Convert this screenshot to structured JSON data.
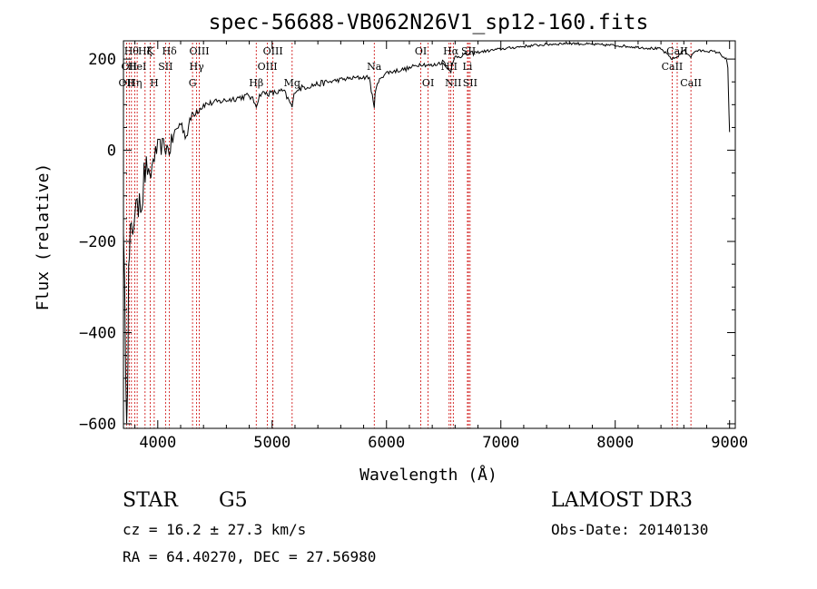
{
  "chart_data": {
    "type": "line",
    "title": "spec-56688-VB062N26V1_sp12-160.fits",
    "xlabel": "Wavelength (Å)",
    "ylabel": "Flux (relative)",
    "xlim": [
      3700,
      9050
    ],
    "ylim": [
      -610,
      240
    ],
    "xticks": [
      4000,
      5000,
      6000,
      7000,
      8000,
      9000
    ],
    "yticks": [
      -600,
      -400,
      -200,
      0,
      200
    ],
    "series": [
      {
        "name": "flux",
        "x": [
          3700,
          3720,
          3735,
          3745,
          3760,
          3780,
          3800,
          3820,
          3840,
          3860,
          3880,
          3900,
          3930,
          3960,
          4000,
          4050,
          4100,
          4150,
          4200,
          4250,
          4300,
          4350,
          4400,
          4500,
          4600,
          4700,
          4800,
          4861,
          4900,
          5000,
          5100,
          5175,
          5200,
          5300,
          5400,
          5500,
          5600,
          5700,
          5800,
          5850,
          5893,
          5900,
          5950,
          6000,
          6100,
          6200,
          6300,
          6400,
          6500,
          6563,
          6600,
          6700,
          6800,
          7000,
          7200,
          7400,
          7600,
          7800,
          8000,
          8200,
          8400,
          8498,
          8542,
          8600,
          8662,
          8700,
          8800,
          8900,
          8970,
          8985,
          8995,
          9000
        ],
        "y": [
          -110,
          -580,
          -450,
          -300,
          -200,
          -170,
          -120,
          -150,
          -80,
          -110,
          -60,
          -30,
          -70,
          -20,
          5,
          10,
          0,
          40,
          60,
          30,
          80,
          90,
          100,
          105,
          110,
          115,
          120,
          100,
          125,
          125,
          130,
          95,
          132,
          140,
          145,
          150,
          155,
          158,
          160,
          160,
          90,
          130,
          160,
          170,
          175,
          180,
          190,
          185,
          195,
          175,
          205,
          210,
          215,
          222,
          228,
          232,
          235,
          232,
          230,
          226,
          222,
          200,
          205,
          220,
          205,
          218,
          218,
          215,
          200,
          180,
          80,
          40
        ]
      }
    ],
    "lines": [
      {
        "wave": 3727,
        "label": "OII",
        "row": 2
      },
      {
        "wave": 3750,
        "label": "OII",
        "row": 1
      },
      {
        "wave": 3770,
        "label": "Hθ",
        "row": 0
      },
      {
        "wave": 3798,
        "label": "Hη",
        "row": 2
      },
      {
        "wave": 3820,
        "label": "HeI",
        "row": 1
      },
      {
        "wave": 3889,
        "label": "Hζ",
        "row": 0
      },
      {
        "wave": 3934,
        "label": "K",
        "row": 0
      },
      {
        "wave": 3969,
        "label": "H",
        "row": 2
      },
      {
        "wave": 4068,
        "label": "SII",
        "row": 1
      },
      {
        "wave": 4102,
        "label": "Hδ",
        "row": 0
      },
      {
        "wave": 4304,
        "label": "G",
        "row": 2
      },
      {
        "wave": 4340,
        "label": "Hγ",
        "row": 1
      },
      {
        "wave": 4363,
        "label": "OIII",
        "row": 0
      },
      {
        "wave": 4861,
        "label": "Hβ",
        "row": 2
      },
      {
        "wave": 4959,
        "label": "OIII",
        "row": 1
      },
      {
        "wave": 5007,
        "label": "OIII",
        "row": 0
      },
      {
        "wave": 5175,
        "label": "Mg",
        "row": 2
      },
      {
        "wave": 5893,
        "label": "Na",
        "row": 1
      },
      {
        "wave": 6300,
        "label": "OI",
        "row": 0
      },
      {
        "wave": 6364,
        "label": "OI",
        "row": 2
      },
      {
        "wave": 6548,
        "label": "NII",
        "row": 1
      },
      {
        "wave": 6563,
        "label": "Hα",
        "row": 0
      },
      {
        "wave": 6584,
        "label": "NII",
        "row": 2
      },
      {
        "wave": 6708,
        "label": "Li",
        "row": 1
      },
      {
        "wave": 6717,
        "label": "SII",
        "row": 0
      },
      {
        "wave": 6731,
        "label": "SII",
        "row": 2
      },
      {
        "wave": 8498,
        "label": "CaII",
        "row": 1
      },
      {
        "wave": 8542,
        "label": "CaII",
        "row": 0
      },
      {
        "wave": 8662,
        "label": "CaII",
        "row": 2
      }
    ]
  },
  "info": {
    "class": "STAR",
    "subclass": "G5",
    "survey": "LAMOST DR3",
    "cz": "cz = 16.2 ± 27.3 km/s",
    "obs_date": "Obs-Date: 20140130",
    "radec": "RA =  64.40270, DEC =  27.56980"
  },
  "colors": {
    "line": "#000000",
    "marker": "#cc0000"
  }
}
